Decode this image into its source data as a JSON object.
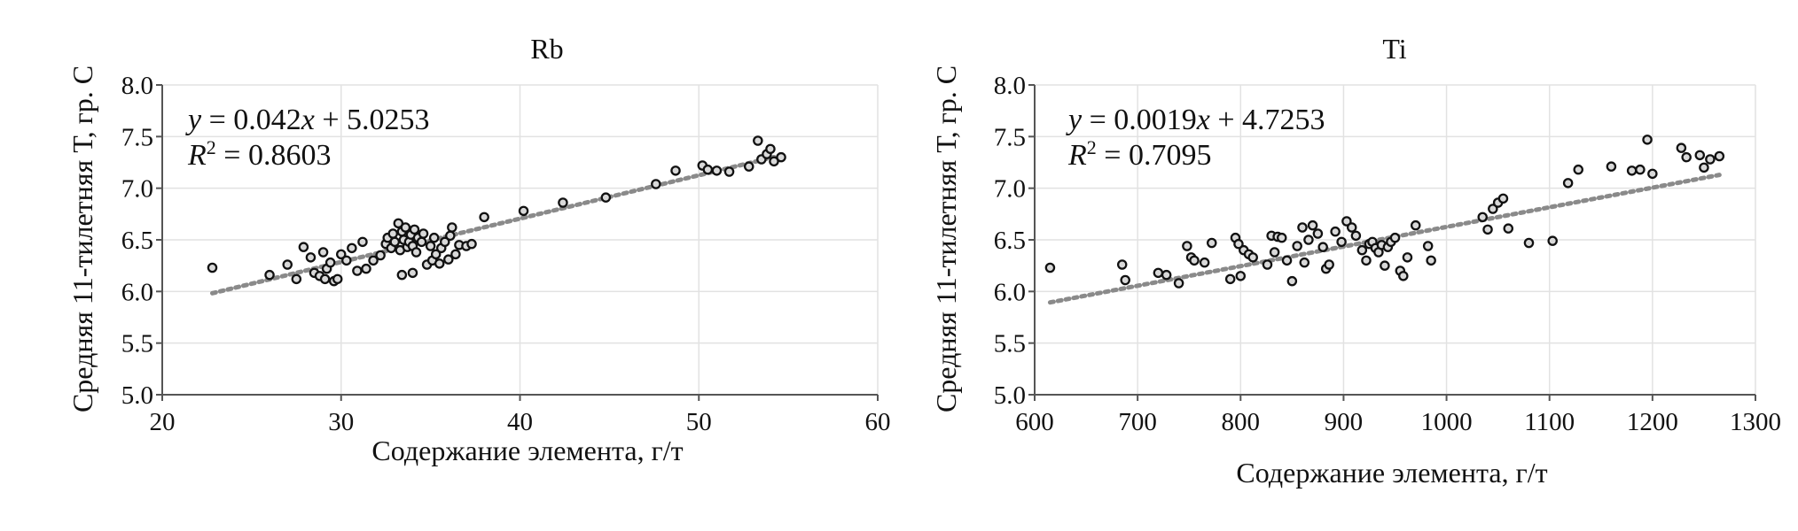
{
  "chart_data": [
    {
      "type": "scatter",
      "title": "Rb",
      "xlabel": "Содержание элемента, г/т",
      "ylabel": "Средняя 11-тилетняя Т, гр. С",
      "xlim": [
        20,
        60
      ],
      "ylim": [
        5.0,
        8.0
      ],
      "x_ticks": [
        "20",
        "30",
        "40",
        "50",
        "60"
      ],
      "y_ticks": [
        "5.0",
        "5.5",
        "6.0",
        "6.5",
        "7.0",
        "7.5",
        "8.0"
      ],
      "grid": true,
      "trendline": {
        "slope": 0.042,
        "intercept": 5.0253,
        "x_range": [
          22.8,
          54.6
        ]
      },
      "equation": {
        "y": "y",
        "eq_rest": " = 0.042",
        "x": "x",
        "eq_tail": " + 5.0253",
        "r": "R",
        "r_sup": "2",
        "r_rest": " = 0.8603"
      },
      "points": [
        [
          22.8,
          6.23
        ],
        [
          26.0,
          6.16
        ],
        [
          27.0,
          6.26
        ],
        [
          27.5,
          6.12
        ],
        [
          27.9,
          6.43
        ],
        [
          28.3,
          6.33
        ],
        [
          28.5,
          6.18
        ],
        [
          28.8,
          6.15
        ],
        [
          29.0,
          6.38
        ],
        [
          29.1,
          6.12
        ],
        [
          29.2,
          6.22
        ],
        [
          29.4,
          6.28
        ],
        [
          29.6,
          6.1
        ],
        [
          29.8,
          6.12
        ],
        [
          30.0,
          6.36
        ],
        [
          30.3,
          6.3
        ],
        [
          30.6,
          6.42
        ],
        [
          30.9,
          6.2
        ],
        [
          31.2,
          6.48
        ],
        [
          31.4,
          6.22
        ],
        [
          31.8,
          6.3
        ],
        [
          32.2,
          6.35
        ],
        [
          32.5,
          6.46
        ],
        [
          32.6,
          6.52
        ],
        [
          32.8,
          6.42
        ],
        [
          32.9,
          6.56
        ],
        [
          33.0,
          6.48
        ],
        [
          33.2,
          6.66
        ],
        [
          33.3,
          6.4
        ],
        [
          33.4,
          6.58
        ],
        [
          33.5,
          6.5
        ],
        [
          33.6,
          6.62
        ],
        [
          33.7,
          6.43
        ],
        [
          33.8,
          6.48
        ],
        [
          33.9,
          6.55
        ],
        [
          34.0,
          6.44
        ],
        [
          34.1,
          6.6
        ],
        [
          34.2,
          6.38
        ],
        [
          34.3,
          6.52
        ],
        [
          33.4,
          6.16
        ],
        [
          34.0,
          6.18
        ],
        [
          34.5,
          6.48
        ],
        [
          34.6,
          6.56
        ],
        [
          34.8,
          6.26
        ],
        [
          35.0,
          6.44
        ],
        [
          35.1,
          6.3
        ],
        [
          35.2,
          6.52
        ],
        [
          35.3,
          6.36
        ],
        [
          35.5,
          6.27
        ],
        [
          35.6,
          6.42
        ],
        [
          35.8,
          6.48
        ],
        [
          36.0,
          6.31
        ],
        [
          36.1,
          6.54
        ],
        [
          36.2,
          6.62
        ],
        [
          36.4,
          6.36
        ],
        [
          36.6,
          6.45
        ],
        [
          37.0,
          6.44
        ],
        [
          37.3,
          6.46
        ],
        [
          38.0,
          6.72
        ],
        [
          40.2,
          6.78
        ],
        [
          42.4,
          6.86
        ],
        [
          44.8,
          6.91
        ],
        [
          47.6,
          7.04
        ],
        [
          48.7,
          7.17
        ],
        [
          50.2,
          7.22
        ],
        [
          50.5,
          7.18
        ],
        [
          51.0,
          7.17
        ],
        [
          51.7,
          7.16
        ],
        [
          52.8,
          7.21
        ],
        [
          53.3,
          7.46
        ],
        [
          53.5,
          7.28
        ],
        [
          53.8,
          7.33
        ],
        [
          54.0,
          7.38
        ],
        [
          54.2,
          7.26
        ],
        [
          54.6,
          7.3
        ]
      ]
    },
    {
      "type": "scatter",
      "title": "Ti",
      "xlabel": "Содержание элемента, г/т",
      "ylabel": "Средняя 11-тилетняя Т, гр. С",
      "xlim": [
        600,
        1300
      ],
      "ylim": [
        5.0,
        8.0
      ],
      "x_ticks": [
        "600",
        "700",
        "800",
        "900",
        "1000",
        "1100",
        "1200",
        "1300"
      ],
      "y_ticks": [
        "5.0",
        "5.5",
        "6.0",
        "6.5",
        "7.0",
        "7.5",
        "8.0"
      ],
      "grid": true,
      "trendline": {
        "slope": 0.0019,
        "intercept": 4.7253,
        "x_range": [
          615,
          1265
        ]
      },
      "equation": {
        "y": "y",
        "eq_rest": " = 0.0019",
        "x": "x",
        "eq_tail": " + 4.7253",
        "r": "R",
        "r_sup": "2",
        "r_rest": " = 0.7095"
      },
      "points": [
        [
          615,
          6.23
        ],
        [
          685,
          6.26
        ],
        [
          688,
          6.11
        ],
        [
          720,
          6.18
        ],
        [
          728,
          6.16
        ],
        [
          740,
          6.08
        ],
        [
          748,
          6.44
        ],
        [
          752,
          6.33
        ],
        [
          755,
          6.3
        ],
        [
          765,
          6.28
        ],
        [
          772,
          6.47
        ],
        [
          790,
          6.12
        ],
        [
          795,
          6.52
        ],
        [
          798,
          6.46
        ],
        [
          800,
          6.15
        ],
        [
          803,
          6.4
        ],
        [
          808,
          6.36
        ],
        [
          812,
          6.33
        ],
        [
          826,
          6.26
        ],
        [
          830,
          6.54
        ],
        [
          833,
          6.38
        ],
        [
          836,
          6.53
        ],
        [
          840,
          6.52
        ],
        [
          845,
          6.3
        ],
        [
          850,
          6.1
        ],
        [
          855,
          6.44
        ],
        [
          860,
          6.62
        ],
        [
          862,
          6.28
        ],
        [
          866,
          6.5
        ],
        [
          870,
          6.64
        ],
        [
          875,
          6.56
        ],
        [
          880,
          6.43
        ],
        [
          883,
          6.22
        ],
        [
          886,
          6.26
        ],
        [
          892,
          6.58
        ],
        [
          898,
          6.48
        ],
        [
          903,
          6.68
        ],
        [
          908,
          6.62
        ],
        [
          912,
          6.54
        ],
        [
          918,
          6.4
        ],
        [
          922,
          6.3
        ],
        [
          925,
          6.46
        ],
        [
          928,
          6.48
        ],
        [
          931,
          6.42
        ],
        [
          934,
          6.38
        ],
        [
          937,
          6.45
        ],
        [
          940,
          6.25
        ],
        [
          943,
          6.43
        ],
        [
          946,
          6.48
        ],
        [
          950,
          6.52
        ],
        [
          955,
          6.2
        ],
        [
          958,
          6.15
        ],
        [
          962,
          6.33
        ],
        [
          970,
          6.64
        ],
        [
          982,
          6.44
        ],
        [
          985,
          6.3
        ],
        [
          1035,
          6.72
        ],
        [
          1040,
          6.6
        ],
        [
          1045,
          6.8
        ],
        [
          1050,
          6.86
        ],
        [
          1055,
          6.9
        ],
        [
          1060,
          6.61
        ],
        [
          1080,
          6.47
        ],
        [
          1103,
          6.49
        ],
        [
          1118,
          7.05
        ],
        [
          1128,
          7.18
        ],
        [
          1160,
          7.21
        ],
        [
          1180,
          7.17
        ],
        [
          1188,
          7.18
        ],
        [
          1195,
          7.47
        ],
        [
          1200,
          7.14
        ],
        [
          1228,
          7.39
        ],
        [
          1233,
          7.3
        ],
        [
          1246,
          7.32
        ],
        [
          1250,
          7.2
        ],
        [
          1256,
          7.28
        ],
        [
          1265,
          7.31
        ]
      ]
    }
  ]
}
